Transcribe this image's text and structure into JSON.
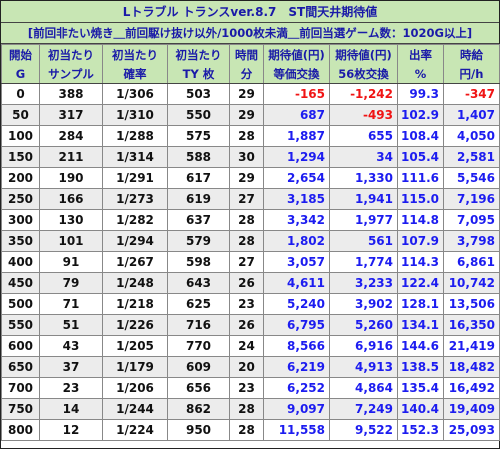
{
  "title": "Lトラブル トランスver.8.7　ST間天井期待値",
  "subtitle": "[前回非たい焼き＿前回駆け抜け以外/1000枚未満＿前回当選ゲーム数：1020G以上]",
  "headers": {
    "row1": [
      "開始",
      "初当たり",
      "初当たり",
      "初当たり",
      "時間",
      "期待値(円)",
      "期待値(円)",
      "出率",
      "時給"
    ],
    "row2": [
      "G",
      "サンプル",
      "確率",
      "TY 枚",
      "分",
      "等価交換",
      "56枚交換",
      "%",
      "円/h"
    ]
  },
  "colors": {
    "header_bg": "#c8e6b4",
    "header_text": "#1a1aa8",
    "positive_value": "#1c1cf0",
    "negative_value": "#f01414",
    "stripe_bg": "#ececec"
  },
  "rows": [
    {
      "start": "0",
      "sample": "388",
      "prob": "1/306",
      "ty": "503",
      "minutes": "29",
      "ev_equal": "-165",
      "ev_56": "-1,242",
      "payout": "99.3",
      "hourly": "-347"
    },
    {
      "start": "50",
      "sample": "317",
      "prob": "1/310",
      "ty": "550",
      "minutes": "29",
      "ev_equal": "687",
      "ev_56": "-493",
      "payout": "102.9",
      "hourly": "1,407"
    },
    {
      "start": "100",
      "sample": "284",
      "prob": "1/288",
      "ty": "575",
      "minutes": "28",
      "ev_equal": "1,887",
      "ev_56": "655",
      "payout": "108.4",
      "hourly": "4,050"
    },
    {
      "start": "150",
      "sample": "211",
      "prob": "1/314",
      "ty": "588",
      "minutes": "30",
      "ev_equal": "1,294",
      "ev_56": "34",
      "payout": "105.4",
      "hourly": "2,581"
    },
    {
      "start": "200",
      "sample": "190",
      "prob": "1/291",
      "ty": "617",
      "minutes": "29",
      "ev_equal": "2,654",
      "ev_56": "1,330",
      "payout": "111.6",
      "hourly": "5,546"
    },
    {
      "start": "250",
      "sample": "166",
      "prob": "1/273",
      "ty": "619",
      "minutes": "27",
      "ev_equal": "3,185",
      "ev_56": "1,941",
      "payout": "115.0",
      "hourly": "7,196"
    },
    {
      "start": "300",
      "sample": "130",
      "prob": "1/282",
      "ty": "637",
      "minutes": "28",
      "ev_equal": "3,342",
      "ev_56": "1,977",
      "payout": "114.8",
      "hourly": "7,095"
    },
    {
      "start": "350",
      "sample": "101",
      "prob": "1/294",
      "ty": "579",
      "minutes": "28",
      "ev_equal": "1,802",
      "ev_56": "561",
      "payout": "107.9",
      "hourly": "3,798"
    },
    {
      "start": "400",
      "sample": "91",
      "prob": "1/267",
      "ty": "598",
      "minutes": "27",
      "ev_equal": "3,057",
      "ev_56": "1,774",
      "payout": "114.3",
      "hourly": "6,861"
    },
    {
      "start": "450",
      "sample": "79",
      "prob": "1/248",
      "ty": "643",
      "minutes": "26",
      "ev_equal": "4,611",
      "ev_56": "3,233",
      "payout": "122.4",
      "hourly": "10,742"
    },
    {
      "start": "500",
      "sample": "71",
      "prob": "1/218",
      "ty": "625",
      "minutes": "23",
      "ev_equal": "5,240",
      "ev_56": "3,902",
      "payout": "128.1",
      "hourly": "13,506"
    },
    {
      "start": "550",
      "sample": "51",
      "prob": "1/226",
      "ty": "716",
      "minutes": "26",
      "ev_equal": "6,795",
      "ev_56": "5,260",
      "payout": "134.1",
      "hourly": "16,350"
    },
    {
      "start": "600",
      "sample": "43",
      "prob": "1/205",
      "ty": "770",
      "minutes": "24",
      "ev_equal": "8,566",
      "ev_56": "6,916",
      "payout": "144.6",
      "hourly": "21,419"
    },
    {
      "start": "650",
      "sample": "37",
      "prob": "1/179",
      "ty": "609",
      "minutes": "20",
      "ev_equal": "6,219",
      "ev_56": "4,913",
      "payout": "138.5",
      "hourly": "18,482"
    },
    {
      "start": "700",
      "sample": "23",
      "prob": "1/206",
      "ty": "656",
      "minutes": "23",
      "ev_equal": "6,252",
      "ev_56": "4,864",
      "payout": "135.4",
      "hourly": "16,492"
    },
    {
      "start": "750",
      "sample": "14",
      "prob": "1/244",
      "ty": "862",
      "minutes": "28",
      "ev_equal": "9,097",
      "ev_56": "7,249",
      "payout": "140.4",
      "hourly": "19,409"
    },
    {
      "start": "800",
      "sample": "12",
      "prob": "1/224",
      "ty": "950",
      "minutes": "28",
      "ev_equal": "11,558",
      "ev_56": "9,522",
      "payout": "152.3",
      "hourly": "25,093"
    }
  ]
}
